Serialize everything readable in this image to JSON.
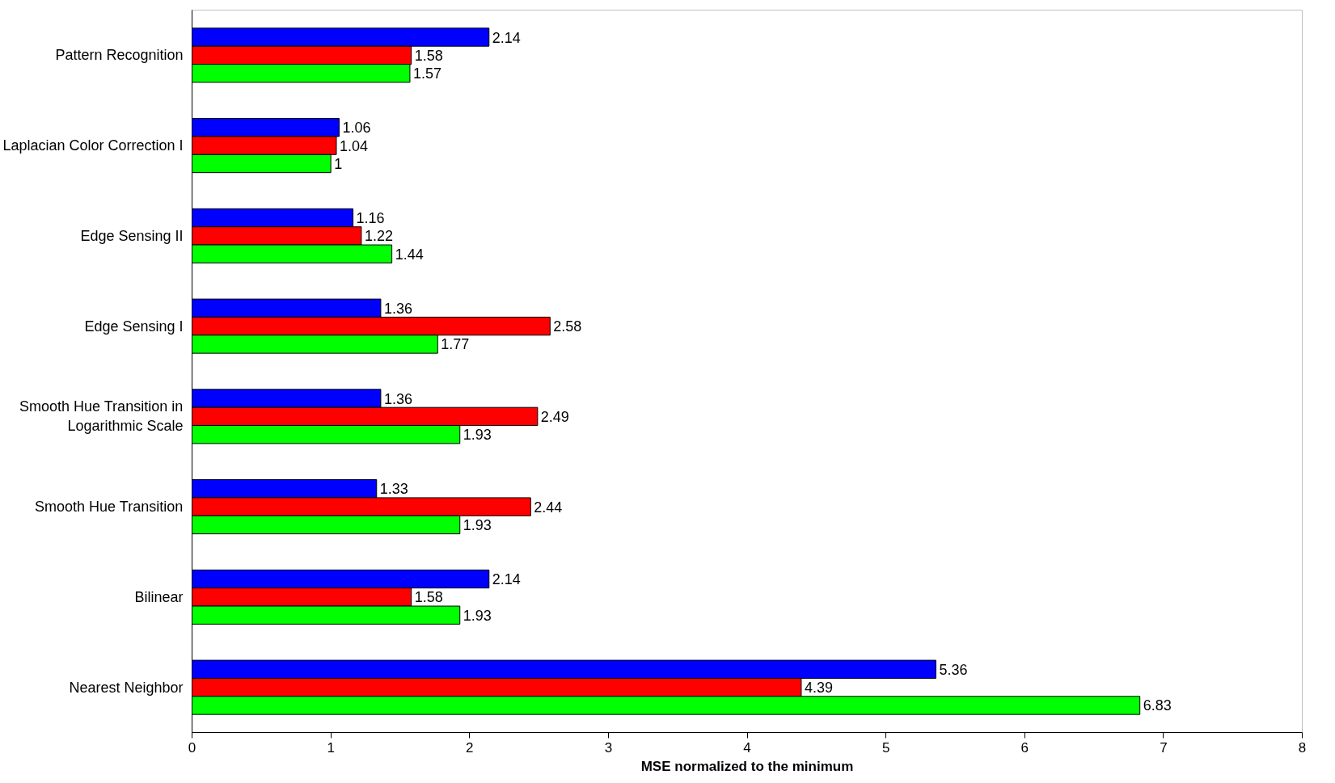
{
  "chart_data": {
    "type": "bar",
    "orientation": "horizontal",
    "xlabel": "MSE normalized to the minimum",
    "categories": [
      "Pattern Recognition",
      "Laplacian Color Correction I",
      "Edge Sensing II",
      "Edge Sensing I",
      "Smooth Hue Transition in Logarithmic Scale",
      "Smooth Hue Transition",
      "Bilinear",
      "Nearest Neighbor"
    ],
    "series": [
      {
        "color": "#0000ff",
        "values": [
          2.14,
          1.06,
          1.16,
          1.36,
          1.36,
          1.33,
          2.14,
          5.36
        ]
      },
      {
        "color": "#ff0000",
        "values": [
          1.58,
          1.04,
          1.22,
          2.58,
          2.49,
          2.44,
          1.58,
          4.39
        ]
      },
      {
        "color": "#00ff00",
        "values": [
          1.57,
          1,
          1.44,
          1.77,
          1.93,
          1.93,
          1.93,
          6.83
        ]
      }
    ],
    "xlim": [
      0,
      8
    ],
    "xticks": [
      0,
      1,
      2,
      3,
      4,
      5,
      6,
      7,
      8
    ],
    "data_labels": true,
    "grid": false
  }
}
